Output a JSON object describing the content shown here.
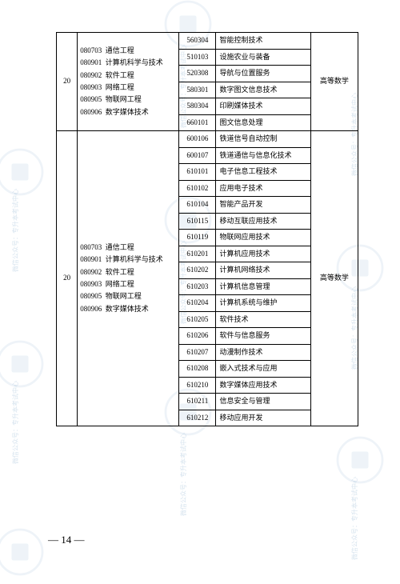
{
  "pageNumber": "— 14 —",
  "watermarkText": "微信公众号：专升本考试中心",
  "watermarkColor": "#8bb0d0",
  "groups": [
    {
      "index": "20",
      "subject": "高等数学",
      "majors1": [
        {
          "code": "080703",
          "name": "通信工程"
        },
        {
          "code": "080901",
          "name": "计算机科学与技术"
        },
        {
          "code": "080902",
          "name": "软件工程"
        },
        {
          "code": "080903",
          "name": "网络工程"
        },
        {
          "code": "080905",
          "name": "物联网工程"
        },
        {
          "code": "080906",
          "name": "数字媒体技术"
        }
      ],
      "majors2": [
        {
          "code": "560304",
          "name": "智能控制技术"
        },
        {
          "code": "510103",
          "name": "设施农业与装备"
        },
        {
          "code": "520308",
          "name": "导航与位置服务"
        },
        {
          "code": "580301",
          "name": "数字图文信息技术"
        },
        {
          "code": "580304",
          "name": "印刷媒体技术"
        },
        {
          "code": "660101",
          "name": "图文信息处理"
        }
      ]
    },
    {
      "index": "20",
      "subject": "高等数学",
      "majors1": [
        {
          "code": "080703",
          "name": "通信工程"
        },
        {
          "code": "080901",
          "name": "计算机科学与技术"
        },
        {
          "code": "080902",
          "name": "软件工程"
        },
        {
          "code": "080903",
          "name": "网络工程"
        },
        {
          "code": "080905",
          "name": "物联网工程"
        },
        {
          "code": "080906",
          "name": "数字媒体技术"
        }
      ],
      "majors2": [
        {
          "code": "600106",
          "name": "铁道信号自动控制"
        },
        {
          "code": "600107",
          "name": "铁道通信与信息化技术"
        },
        {
          "code": "610101",
          "name": "电子信息工程技术"
        },
        {
          "code": "610102",
          "name": "应用电子技术"
        },
        {
          "code": "610104",
          "name": "智能产品开发"
        },
        {
          "code": "610115",
          "name": "移动互联应用技术"
        },
        {
          "code": "610119",
          "name": "物联网应用技术"
        },
        {
          "code": "610201",
          "name": "计算机应用技术"
        },
        {
          "code": "610202",
          "name": "计算机网络技术"
        },
        {
          "code": "610203",
          "name": "计算机信息管理"
        },
        {
          "code": "610204",
          "name": "计算机系统与维护"
        },
        {
          "code": "610205",
          "name": "软件技术"
        },
        {
          "code": "610206",
          "name": "软件与信息服务"
        },
        {
          "code": "610207",
          "name": "动漫制作技术"
        },
        {
          "code": "610208",
          "name": "嵌入式技术与应用"
        },
        {
          "code": "610210",
          "name": "数字媒体应用技术"
        },
        {
          "code": "610211",
          "name": "信息安全与管理"
        },
        {
          "code": "610212",
          "name": "移动应用开发"
        }
      ]
    }
  ]
}
